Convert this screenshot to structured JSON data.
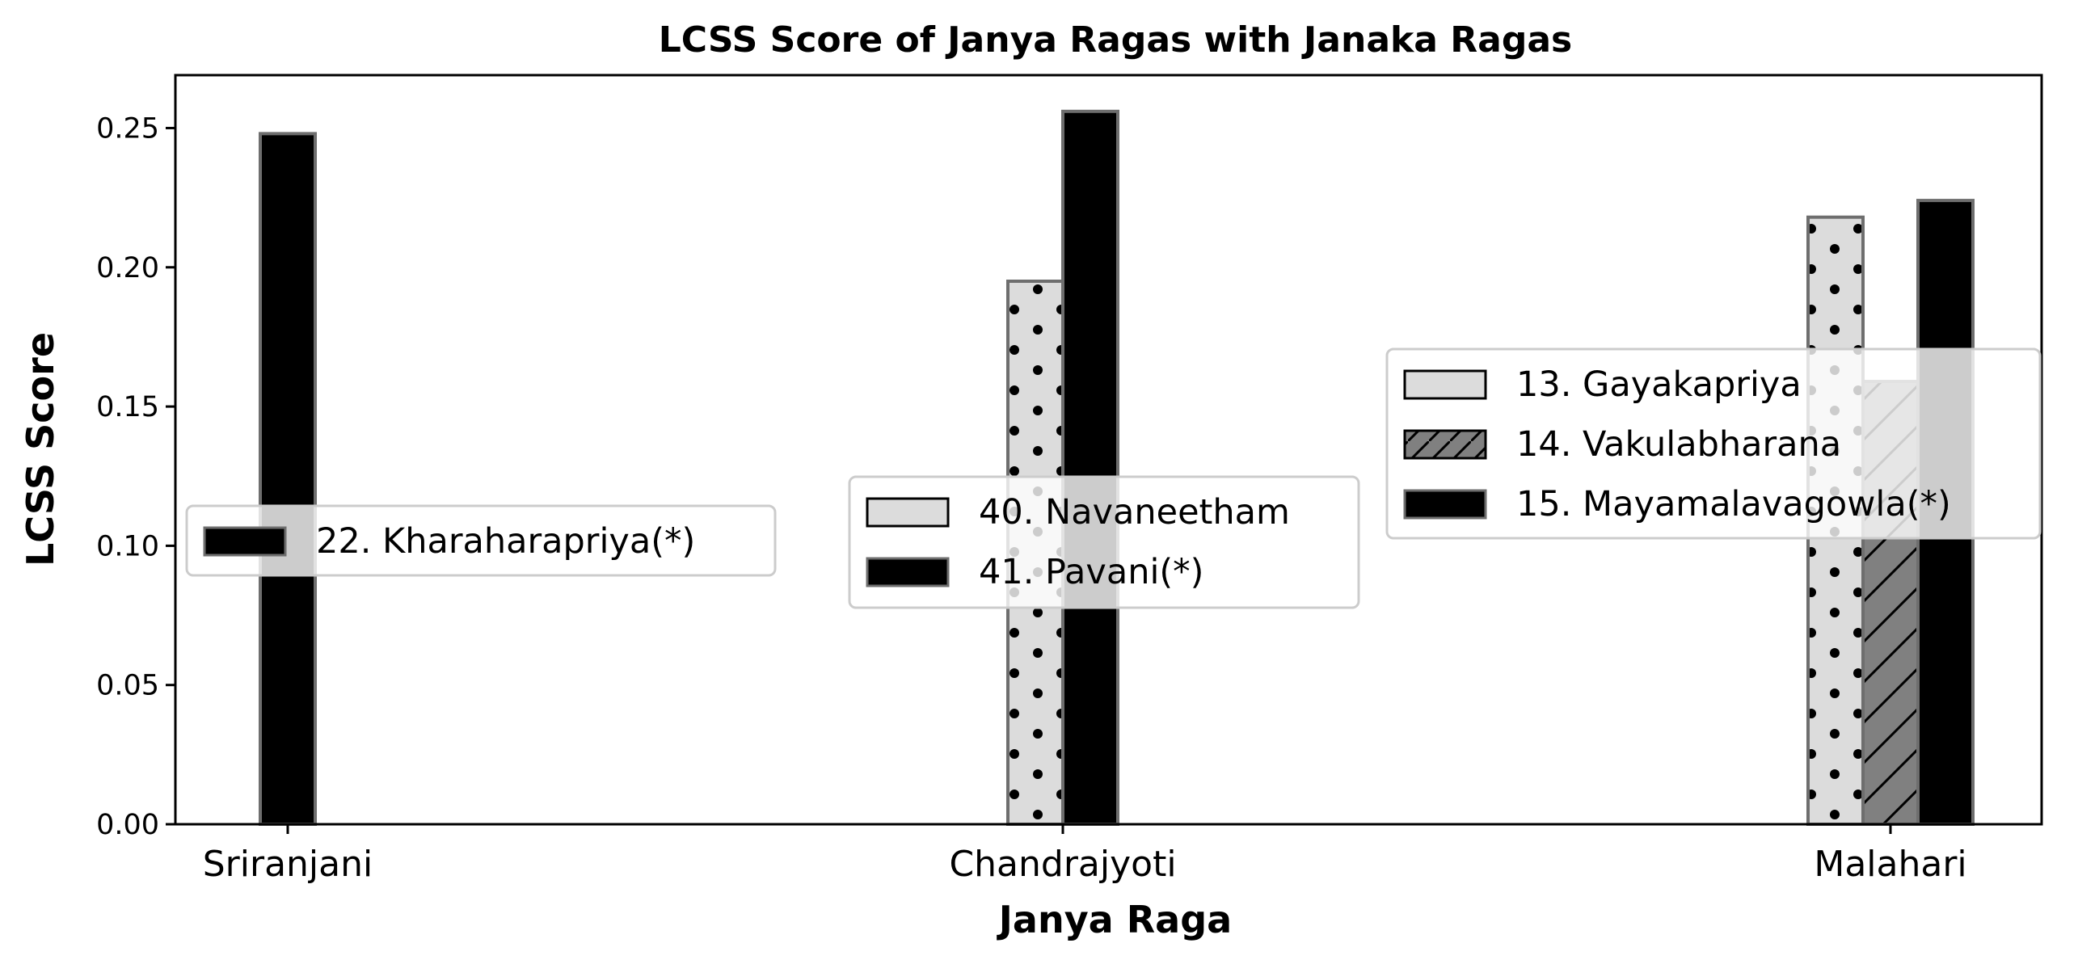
{
  "chart_data": {
    "type": "bar",
    "title": "LCSS Score of Janya Ragas with Janaka Ragas",
    "xlabel": "Janya Raga",
    "ylabel": "LCSS Score",
    "ylim": [
      0,
      0.269
    ],
    "yticks": [
      "0.00",
      "0.05",
      "0.10",
      "0.15",
      "0.20",
      "0.25"
    ],
    "grid": false,
    "groups": [
      {
        "category": "Sriranjani",
        "legend_position": "center-left",
        "bars": [
          {
            "name": "22. Kharaharapriya(*)",
            "value": 0.248,
            "fill": "#000000",
            "pattern": "none"
          }
        ]
      },
      {
        "category": "Chandrajyoti",
        "legend_position": "center",
        "bars": [
          {
            "name": "40. Navaneetham",
            "value": 0.195,
            "fill": "#dcdcdc",
            "pattern": "dots"
          },
          {
            "name": "41. Pavani(*)",
            "value": 0.256,
            "fill": "#000000",
            "pattern": "none"
          }
        ]
      },
      {
        "category": "Malahari",
        "legend_position": "center-right",
        "bars": [
          {
            "name": "13. Gayakapriya",
            "value": 0.218,
            "fill": "#dcdcdc",
            "pattern": "dots"
          },
          {
            "name": "14. Vakulabharana",
            "value": 0.159,
            "fill": "#808080",
            "pattern": "hatch"
          },
          {
            "name": "15. Mayamalavagowla(*)",
            "value": 0.224,
            "fill": "#000000",
            "pattern": "none"
          }
        ]
      }
    ]
  }
}
